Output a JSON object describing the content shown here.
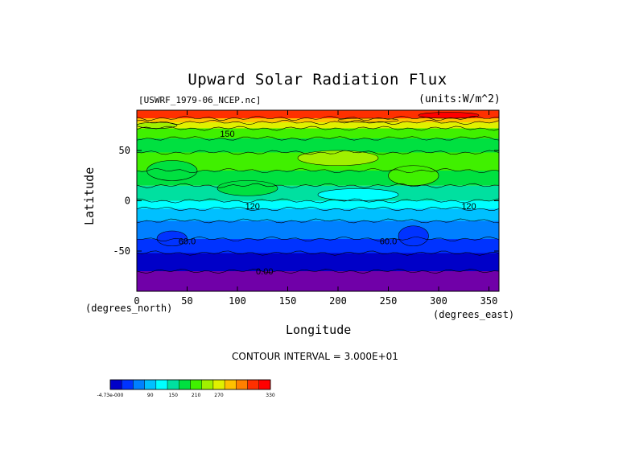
{
  "chart_data": {
    "type": "heatmap",
    "title": "Upward Solar Radiation Flux",
    "file_label": "[USWRF_1979-06_NCEP.nc]",
    "units_label": "(units:W/m^2)",
    "xlabel": "Longitude",
    "ylabel": "Latitude",
    "x_unit_label": "(degrees_east)",
    "y_unit_label": "(degrees_north)",
    "xlim": [
      0,
      360
    ],
    "ylim": [
      -90,
      90
    ],
    "x_ticks": [
      0,
      50,
      100,
      150,
      200,
      250,
      300,
      350
    ],
    "y_ticks": [
      -50,
      0,
      50
    ],
    "contour_interval_text": "CONTOUR INTERVAL = 3.000E+01",
    "contour_labels": [
      {
        "text": "60.0",
        "lon": 50,
        "lat": -40
      },
      {
        "text": "60.0",
        "lon": 250,
        "lat": -40
      },
      {
        "text": "0.00",
        "lon": 127,
        "lat": -70
      },
      {
        "text": "150",
        "lon": 90,
        "lat": 67
      },
      {
        "text": "120",
        "lon": 115,
        "lat": -5
      },
      {
        "text": "120",
        "lon": 330,
        "lat": -5
      }
    ],
    "colorbar": {
      "colors": [
        "#0000c8",
        "#0033ff",
        "#0080ff",
        "#00c0ff",
        "#00ffff",
        "#00e0a0",
        "#00e040",
        "#40f000",
        "#a0f000",
        "#e0f000",
        "#ffc000",
        "#ff8000",
        "#ff3000",
        "#ff0000"
      ],
      "tick_labels": [
        "-4.73e-000",
        "90",
        "150",
        "210",
        "270",
        "330"
      ]
    },
    "bands": [
      {
        "lat_min": -90,
        "lat_max": -70,
        "color": "#7000a8"
      },
      {
        "lat_min": -70,
        "lat_max": -52,
        "color": "#0000c8"
      },
      {
        "lat_min": -52,
        "lat_max": -38,
        "color": "#0033ff"
      },
      {
        "lat_min": -38,
        "lat_max": -20,
        "color": "#0080ff"
      },
      {
        "lat_min": -20,
        "lat_max": -8,
        "color": "#00c0ff"
      },
      {
        "lat_min": -8,
        "lat_max": 0,
        "color": "#00ffff"
      },
      {
        "lat_min": 0,
        "lat_max": 15,
        "color": "#00e0a0"
      },
      {
        "lat_min": 15,
        "lat_max": 30,
        "color": "#00e040"
      },
      {
        "lat_min": 30,
        "lat_max": 48,
        "color": "#40f000"
      },
      {
        "lat_min": 48,
        "lat_max": 62,
        "color": "#00e040"
      },
      {
        "lat_min": 62,
        "lat_max": 72,
        "color": "#40f000"
      },
      {
        "lat_min": 72,
        "lat_max": 78,
        "color": "#e0f000"
      },
      {
        "lat_min": 78,
        "lat_max": 82,
        "color": "#ffc000"
      },
      {
        "lat_min": 82,
        "lat_max": 90,
        "color": "#ff3000"
      }
    ],
    "patches": [
      {
        "lon_min": 10,
        "lon_max": 60,
        "lat_min": 20,
        "lat_max": 40,
        "color": "#00e040"
      },
      {
        "lon_min": 160,
        "lon_max": 240,
        "lat_min": 35,
        "lat_max": 50,
        "color": "#a0f000"
      },
      {
        "lon_min": 250,
        "lon_max": 300,
        "lat_min": 15,
        "lat_max": 35,
        "color": "#40f000"
      },
      {
        "lon_min": 80,
        "lon_max": 140,
        "lat_min": 5,
        "lat_max": 20,
        "color": "#00e040"
      },
      {
        "lon_min": 180,
        "lon_max": 260,
        "lat_min": 0,
        "lat_max": 12,
        "color": "#00ffff"
      },
      {
        "lon_min": 20,
        "lon_max": 50,
        "lat_min": -45,
        "lat_max": -30,
        "color": "#0033ff"
      },
      {
        "lon_min": 260,
        "lon_max": 290,
        "lat_min": -45,
        "lat_max": -25,
        "color": "#0033ff"
      },
      {
        "lon_min": 280,
        "lon_max": 340,
        "lat_min": 82,
        "lat_max": 88,
        "color": "#ff0000"
      },
      {
        "lon_min": 200,
        "lon_max": 260,
        "lat_min": 78,
        "lat_max": 82,
        "color": "#ffc000"
      },
      {
        "lon_min": 0,
        "lon_max": 40,
        "lat_min": 72,
        "lat_max": 78,
        "color": "#a0f000"
      }
    ]
  }
}
